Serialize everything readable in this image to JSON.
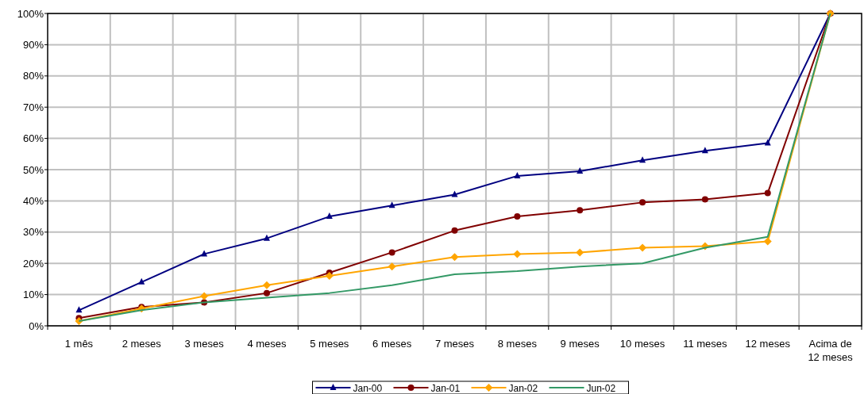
{
  "chart_data": {
    "type": "line",
    "categories": [
      "1 mês",
      "2 meses",
      "3 meses",
      "4 meses",
      "5 meses",
      "6 meses",
      "7 meses",
      "8 meses",
      "9 meses",
      "10 meses",
      "11 meses",
      "12 meses",
      "Acima de 12 meses"
    ],
    "series": [
      {
        "name": "Jan-00",
        "color": "#000080",
        "marker": "triangle",
        "values": [
          5,
          14,
          23,
          28,
          35,
          38.5,
          42,
          48,
          49.5,
          53,
          56,
          58.5,
          100
        ]
      },
      {
        "name": "Jan-01",
        "color": "#800000",
        "marker": "circle",
        "values": [
          2.5,
          6,
          7.5,
          10.5,
          17,
          23.5,
          30.5,
          35,
          37,
          39.5,
          40.5,
          42.5,
          100
        ]
      },
      {
        "name": "Jan-02",
        "color": "#ffa500",
        "marker": "diamond",
        "values": [
          1.5,
          5.5,
          9.5,
          13,
          16,
          19,
          22,
          23,
          23.5,
          25,
          25.5,
          27,
          100
        ]
      },
      {
        "name": "Jun-02",
        "color": "#339966",
        "marker": "none",
        "values": [
          1.5,
          5,
          7.5,
          9,
          10.5,
          13,
          16.5,
          17.5,
          19,
          20,
          25,
          28.5,
          100
        ]
      }
    ],
    "ylim": [
      0,
      100
    ],
    "yticks": [
      {
        "value": 0,
        "label": "0%"
      },
      {
        "value": 10,
        "label": "10%"
      },
      {
        "value": 20,
        "label": "20%"
      },
      {
        "value": 30,
        "label": "30%"
      },
      {
        "value": 40,
        "label": "40%"
      },
      {
        "value": 50,
        "label": "50%"
      },
      {
        "value": 60,
        "label": "60%"
      },
      {
        "value": 70,
        "label": "70%"
      },
      {
        "value": 80,
        "label": "80%"
      },
      {
        "value": 90,
        "label": "90%"
      },
      {
        "value": 100,
        "label": "100%"
      }
    ],
    "grid": true,
    "legend": "bottom"
  }
}
